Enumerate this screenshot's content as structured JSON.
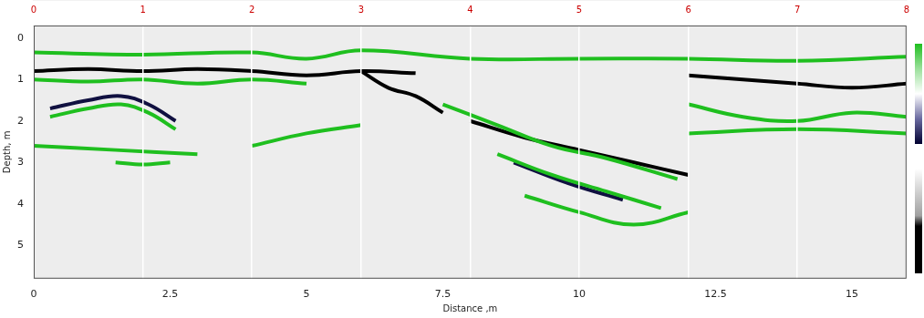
{
  "chart_data": {
    "type": "line",
    "x_label": "Distance ,m",
    "y_label": "Depth, m",
    "xlim": [
      0,
      16
    ],
    "xticks": [
      0,
      2.5,
      5,
      7.5,
      10,
      12.5,
      15
    ],
    "x2lim": [
      0,
      16
    ],
    "x2ticks": [
      {
        "value": 0,
        "label": "0"
      },
      {
        "value": 2,
        "label": "1"
      },
      {
        "value": 4,
        "label": "2"
      },
      {
        "value": 6,
        "label": "3"
      },
      {
        "value": 8,
        "label": "4"
      },
      {
        "value": 10,
        "label": "5"
      },
      {
        "value": 12,
        "label": "6"
      },
      {
        "value": 14,
        "label": "7"
      },
      {
        "value": 16,
        "label": "8"
      }
    ],
    "ylim": [
      -0.3,
      5.8
    ],
    "yticks": [
      0,
      1,
      2,
      3,
      4,
      5
    ],
    "grid": true,
    "series": [
      {
        "color": "#1fbf1f",
        "x": [
          0,
          2,
          4,
          5,
          6,
          8,
          10,
          12,
          14,
          16
        ],
        "values": [
          0.35,
          0.4,
          0.35,
          0.5,
          0.3,
          0.5,
          0.5,
          0.5,
          0.55,
          0.45
        ]
      },
      {
        "color": "#000000",
        "x": [
          0,
          1,
          2,
          3,
          4,
          5,
          6,
          7
        ],
        "values": [
          0.8,
          0.75,
          0.8,
          0.75,
          0.8,
          0.9,
          0.8,
          0.85
        ]
      },
      {
        "color": "#1fbf1f",
        "x": [
          0,
          1,
          2,
          3,
          4,
          5
        ],
        "values": [
          1.0,
          1.05,
          1.0,
          1.1,
          1.0,
          1.1
        ]
      },
      {
        "color": "#101040",
        "x": [
          0.3,
          1,
          1.6,
          2.1,
          2.6
        ],
        "values": [
          1.7,
          1.5,
          1.4,
          1.6,
          2.0
        ]
      },
      {
        "color": "#1fbf1f",
        "x": [
          0.3,
          1,
          1.6,
          2.1,
          2.6
        ],
        "values": [
          1.9,
          1.7,
          1.6,
          1.8,
          2.2
        ]
      },
      {
        "color": "#1fbf1f",
        "x": [
          4,
          5,
          6
        ],
        "values": [
          2.6,
          2.3,
          2.1
        ]
      },
      {
        "color": "#1fbf1f",
        "x": [
          0,
          1.5,
          3
        ],
        "values": [
          2.6,
          2.7,
          2.8
        ]
      },
      {
        "color": "#1fbf1f",
        "x": [
          1.5,
          2,
          2.5
        ],
        "values": [
          3.0,
          3.05,
          3.0
        ]
      },
      {
        "color": "#000000",
        "x": [
          6,
          6.5,
          7,
          7.5
        ],
        "values": [
          0.8,
          1.2,
          1.4,
          1.8
        ]
      },
      {
        "color": "#1fbf1f",
        "x": [
          7.5,
          8.5,
          9.5,
          10.5,
          11.8
        ],
        "values": [
          1.6,
          2.1,
          2.6,
          2.9,
          3.4
        ]
      },
      {
        "color": "#000000",
        "x": [
          8,
          9,
          10,
          11,
          12
        ],
        "values": [
          2.0,
          2.4,
          2.7,
          3.0,
          3.3
        ]
      },
      {
        "color": "#1fbf1f",
        "x": [
          8.5,
          9.5,
          10.5,
          11.5
        ],
        "values": [
          2.8,
          3.3,
          3.7,
          4.1
        ]
      },
      {
        "color": "#101040",
        "x": [
          8.8,
          9.8,
          10.8
        ],
        "values": [
          3.0,
          3.5,
          3.9
        ]
      },
      {
        "color": "#1fbf1f",
        "x": [
          9,
          10,
          11,
          12
        ],
        "values": [
          3.8,
          4.2,
          4.5,
          4.2
        ]
      },
      {
        "color": "#000000",
        "x": [
          12,
          13,
          14,
          15,
          16
        ],
        "values": [
          0.9,
          1.0,
          1.1,
          1.2,
          1.1
        ]
      },
      {
        "color": "#1fbf1f",
        "x": [
          12,
          13,
          14,
          15,
          16
        ],
        "values": [
          1.6,
          1.9,
          2.0,
          1.8,
          1.9
        ]
      },
      {
        "color": "#1fbf1f",
        "x": [
          12,
          14,
          16
        ],
        "values": [
          2.3,
          2.2,
          2.3
        ]
      }
    ]
  }
}
